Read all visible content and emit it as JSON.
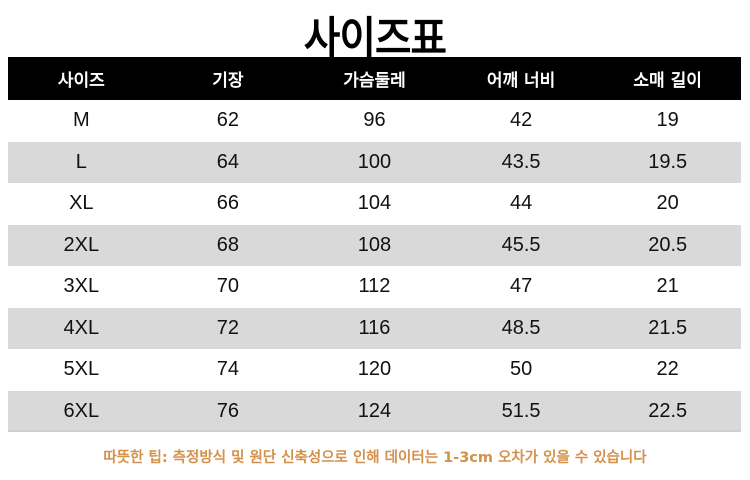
{
  "title": "사이즈표",
  "headers": [
    "사이즈",
    "기장",
    "가슴둘레",
    "어깨 너비",
    "소매 길이"
  ],
  "rows": [
    [
      "M",
      "62",
      "96",
      "42",
      "19"
    ],
    [
      "L",
      "64",
      "100",
      "43.5",
      "19.5"
    ],
    [
      "XL",
      "66",
      "104",
      "44",
      "20"
    ],
    [
      "2XL",
      "68",
      "108",
      "45.5",
      "20.5"
    ],
    [
      "3XL",
      "70",
      "112",
      "47",
      "21"
    ],
    [
      "4XL",
      "72",
      "116",
      "48.5",
      "21.5"
    ],
    [
      "5XL",
      "74",
      "120",
      "50",
      "22"
    ],
    [
      "6XL",
      "76",
      "124",
      "51.5",
      "22.5"
    ]
  ],
  "note": "따뜻한 팁: 측정방식 및 원단 신축성으로 인해 데이터는 1-3cm 오차가 있을 수 있습니다",
  "colors": {
    "header_bg": "#000000",
    "alt_row_bg": "#d9d9d9",
    "note": "#d4914a"
  }
}
